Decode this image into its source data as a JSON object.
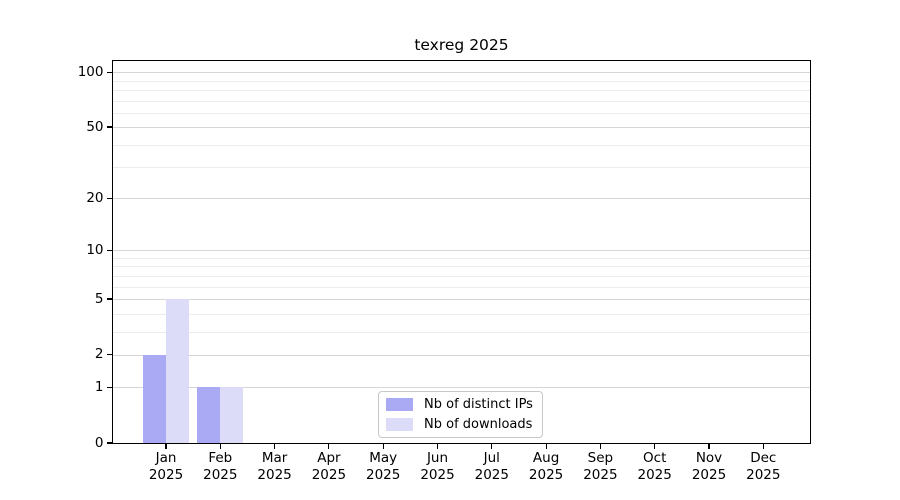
{
  "chart_data": {
    "type": "bar",
    "title": "texreg 2025",
    "categories": [
      "Jan 2025",
      "Feb 2025",
      "Mar 2025",
      "Apr 2025",
      "May 2025",
      "Jun 2025",
      "Jul 2025",
      "Aug 2025",
      "Sep 2025",
      "Oct 2025",
      "Nov 2025",
      "Dec 2025"
    ],
    "series": [
      {
        "name": "Nb of distinct IPs",
        "color": "#a9a9f4",
        "values": [
          2,
          1,
          0,
          0,
          0,
          0,
          0,
          0,
          0,
          0,
          0,
          0
        ]
      },
      {
        "name": "Nb of downloads",
        "color": "#dcdcf8",
        "values": [
          5,
          1,
          0,
          0,
          0,
          0,
          0,
          0,
          0,
          0,
          0,
          0
        ]
      }
    ],
    "yscale": "log1p",
    "y_major_ticks": [
      0,
      1,
      2,
      5,
      10,
      20,
      50,
      100
    ],
    "y_minor_gridlines": [
      3,
      4,
      6,
      7,
      8,
      9,
      30,
      40,
      60,
      70,
      80,
      90
    ],
    "ylim": [
      0,
      115
    ],
    "grid": true,
    "legend_position": "lower center"
  },
  "colors": {
    "grid_major": "#d6d6d6",
    "grid_minor": "#ececec",
    "axis": "#000000",
    "legend_border": "#c8c8c8",
    "background": "#ffffff",
    "text": "#000000"
  }
}
